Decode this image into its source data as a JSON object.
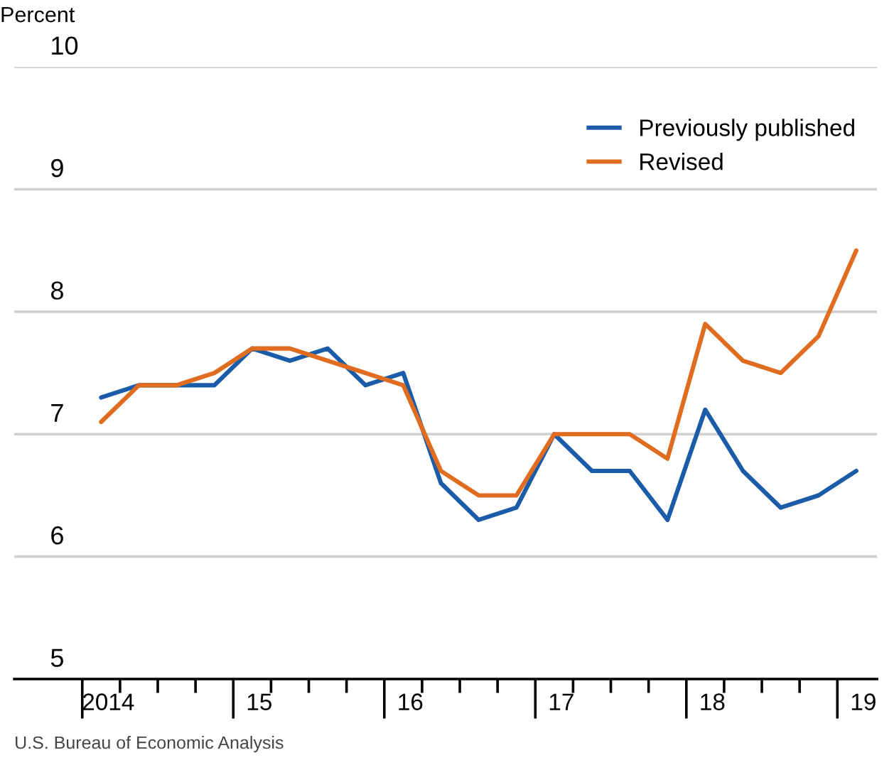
{
  "chart_data": {
    "type": "line",
    "ylabel": "Percent",
    "categories": [
      "2014",
      null,
      null,
      null,
      "15",
      null,
      null,
      null,
      "16",
      null,
      null,
      null,
      "17",
      null,
      null,
      null,
      "18",
      null,
      null,
      null,
      "19"
    ],
    "series": [
      {
        "name": "Previously published",
        "color": "#1a5ca8",
        "values": [
          7.3,
          7.4,
          7.4,
          7.4,
          7.7,
          7.6,
          7.7,
          7.4,
          7.5,
          6.6,
          6.3,
          6.4,
          7.0,
          6.7,
          6.7,
          6.3,
          7.2,
          6.7,
          6.4,
          6.5,
          6.7
        ]
      },
      {
        "name": "Revised",
        "color": "#e06c1f",
        "values": [
          7.1,
          7.4,
          7.4,
          7.5,
          7.7,
          7.7,
          7.6,
          7.5,
          7.4,
          6.7,
          6.5,
          6.5,
          7.0,
          7.0,
          7.0,
          6.8,
          7.9,
          7.6,
          7.5,
          7.8,
          8.5
        ]
      }
    ],
    "ylim": [
      5,
      10
    ],
    "yticks": [
      5,
      6,
      7,
      8,
      9,
      10
    ],
    "grid": "y",
    "legend": "top right",
    "marker": "none",
    "line_style": "solid",
    "annotations": [
      "U.S. Bureau of Economic Analysis"
    ]
  }
}
